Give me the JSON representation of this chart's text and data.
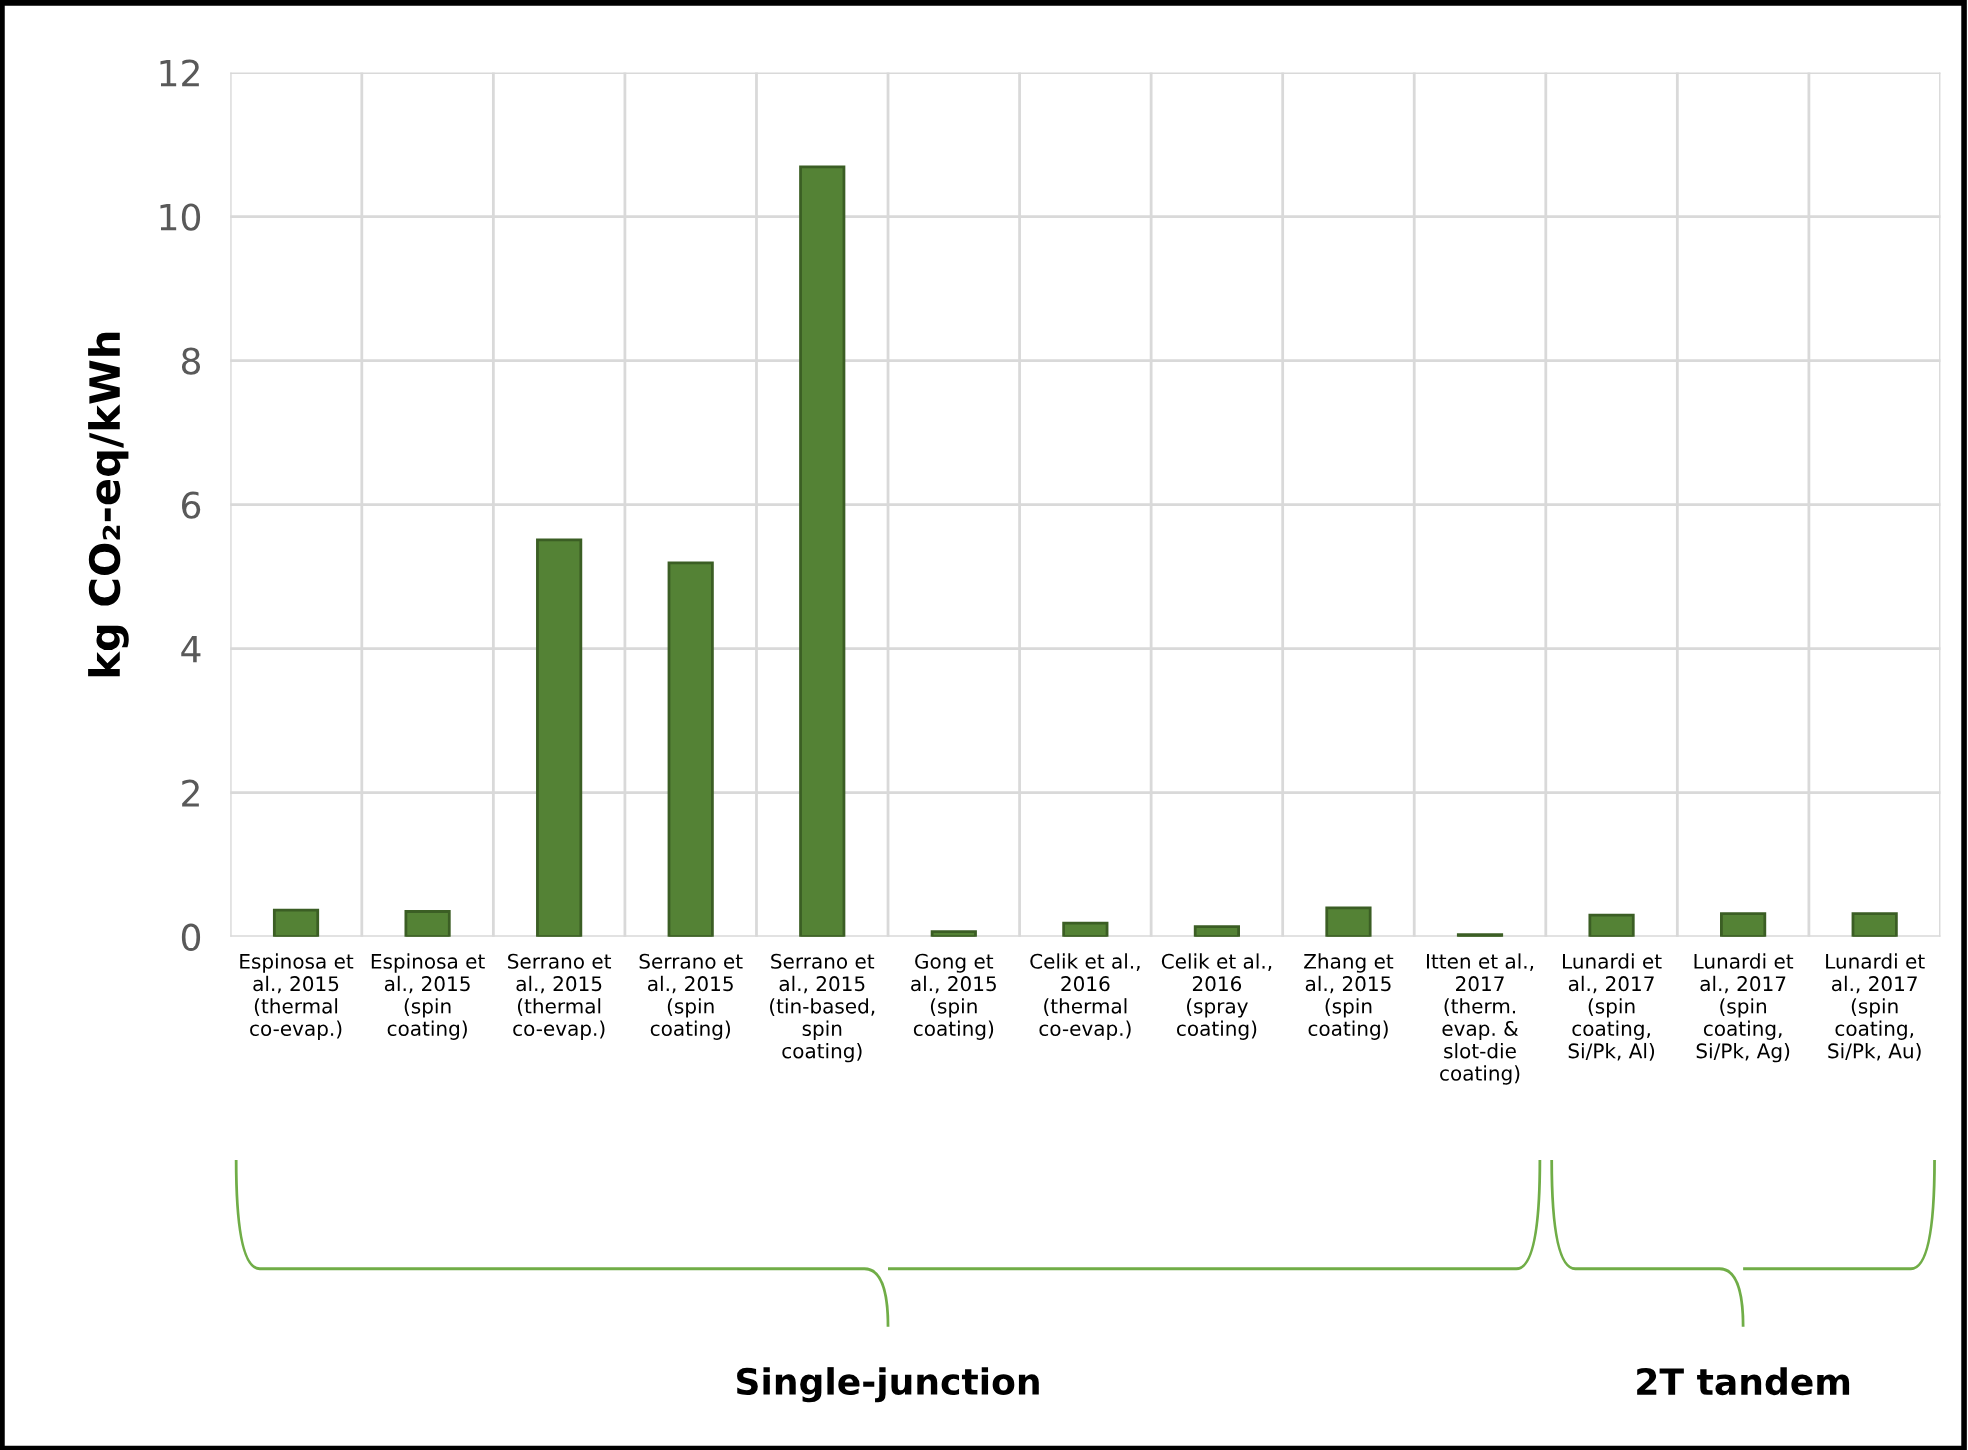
{
  "chart_data": {
    "type": "bar",
    "ylabel": "kg CO₂-eq/kWh",
    "categories": [
      "Espinosa et\nal., 2015\n(thermal\nco-evap.)",
      "Espinosa et\nal., 2015\n(spin\ncoating)",
      "Serrano et\nal., 2015\n(thermal\nco-evap.)",
      "Serrano et\nal., 2015\n(spin\ncoating)",
      "Serrano et\nal., 2015\n(tin-based,\nspin\ncoating)",
      "Gong et\nal., 2015\n(spin\ncoating)",
      "Celik et al.,\n2016\n(thermal\nco-evap.)",
      "Celik et al.,\n2016\n(spray\ncoating)",
      "Zhang et\nal., 2015\n(spin\ncoating)",
      "Itten et al.,\n2017\n(therm.\nevap. &\nslot-die\ncoating)",
      "Lunardi et\nal., 2017\n(spin\ncoating,\nSi/Pk, Al)",
      "Lunardi et\nal., 2017\n(spin\ncoating,\nSi/Pk, Ag)",
      "Lunardi et\nal., 2017\n(spin\ncoating,\nSi/Pk, Au)"
    ],
    "values": [
      0.37,
      0.35,
      5.51,
      5.19,
      10.69,
      0.07,
      0.19,
      0.14,
      0.4,
      0.03,
      0.3,
      0.32,
      0.32
    ],
    "color": "#548235",
    "ylim": [
      0,
      12
    ],
    "yticks": [
      0,
      2,
      4,
      6,
      8,
      10,
      12
    ],
    "grid": true,
    "annotations": [
      "Single-junction",
      "2T tandem"
    ]
  }
}
